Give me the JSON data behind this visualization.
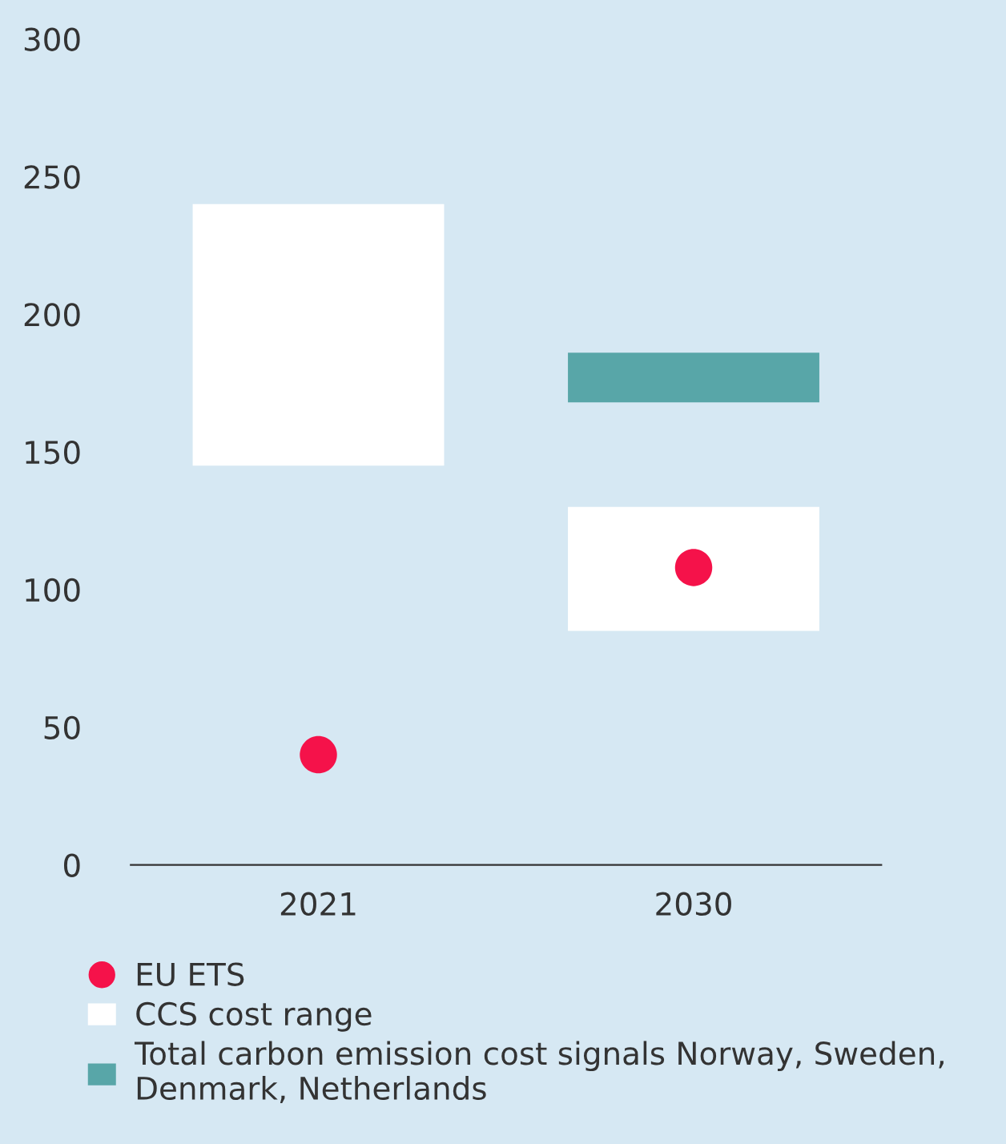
{
  "chart_data": {
    "type": "bar",
    "categories": [
      "2021",
      "2030"
    ],
    "ylim": [
      0,
      300
    ],
    "yticks": [
      0,
      50,
      100,
      150,
      200,
      250,
      300
    ],
    "grid": false,
    "legend": "bottom",
    "series": [
      {
        "name": "CCS cost range",
        "color": "#ffffff",
        "base": [
          145,
          85
        ],
        "values": [
          95,
          45
        ]
      },
      {
        "name": "Total carbon emission cost signals Norway, Sweden, Denmark, Netherlands",
        "color": "#58a6a8",
        "base": [
          null,
          168
        ],
        "values": [
          null,
          18
        ]
      },
      {
        "name": "EU ETS",
        "type": "scatter",
        "marker": "circle",
        "color": "#f5124a",
        "values": [
          40,
          108
        ]
      }
    ]
  }
}
